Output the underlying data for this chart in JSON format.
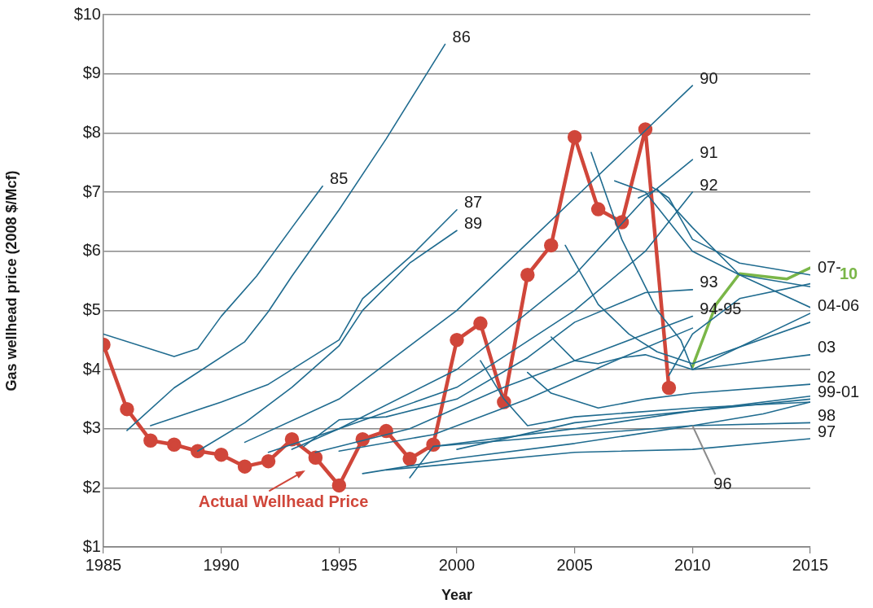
{
  "chart_data": {
    "type": "line",
    "xlabel": "Year",
    "ylabel": "Gas wellhead price (2008 $/Mcf)",
    "xlim": [
      1985,
      2015
    ],
    "xticks": [
      1985,
      1990,
      1995,
      2000,
      2005,
      2010,
      2015
    ],
    "ylim": [
      1,
      10
    ],
    "yticks": [
      {
        "value": 1,
        "label": "$1"
      },
      {
        "value": 2,
        "label": "$2"
      },
      {
        "value": 3,
        "label": "$3"
      },
      {
        "value": 4,
        "label": "$4"
      },
      {
        "value": 5,
        "label": "$5"
      },
      {
        "value": 6,
        "label": "$6"
      },
      {
        "value": 7,
        "label": "$7"
      },
      {
        "value": 8,
        "label": "$8"
      },
      {
        "value": 9,
        "label": "$9"
      },
      {
        "value": 10,
        "label": "$10"
      }
    ],
    "grid": "y",
    "line_style": "solid",
    "series": [
      {
        "color": "#1f6b8f",
        "x": [
          1985,
          1988,
          1989,
          1990,
          1991.5,
          1993,
          1994.3
        ],
        "values": [
          4.6,
          4.22,
          4.35,
          4.9,
          5.58,
          6.4,
          7.1
        ]
      },
      {
        "color": "#1f6b8f",
        "x": [
          1986,
          1988,
          1991,
          1992,
          1993,
          1995,
          1997,
          1999.5
        ],
        "values": [
          2.97,
          3.69,
          4.47,
          4.98,
          5.58,
          6.7,
          7.9,
          9.5
        ]
      },
      {
        "color": "#1f6b8f",
        "x": [
          1987,
          1990,
          1992,
          1995,
          1996,
          1998,
          2000
        ],
        "values": [
          3.05,
          3.45,
          3.75,
          4.5,
          5.2,
          5.9,
          6.7
        ]
      },
      {
        "color": "#1f6b8f",
        "x": [
          1989,
          1991,
          1993,
          1995,
          1996,
          1998,
          2000
        ],
        "values": [
          2.62,
          3.1,
          3.7,
          4.4,
          5.0,
          5.8,
          6.35
        ]
      },
      {
        "color": "#1f6b8f",
        "x": [
          1991,
          1995,
          2000,
          2005,
          2010
        ],
        "values": [
          2.77,
          3.5,
          5.0,
          6.9,
          8.8
        ]
      },
      {
        "color": "#1f6b8f",
        "x": [
          1992,
          1995,
          2000,
          2005,
          2008,
          2010
        ],
        "values": [
          2.6,
          3.0,
          4.0,
          5.6,
          6.9,
          7.55
        ]
      },
      {
        "color": "#1f6b8f",
        "x": [
          1993,
          1995,
          2000,
          2005,
          2008,
          2010
        ],
        "values": [
          2.65,
          3.0,
          3.7,
          5.0,
          6.0,
          7.0
        ]
      },
      {
        "color": "#1f6b8f",
        "x": [
          1993.5,
          1995,
          1997,
          2000,
          2003,
          2005,
          2008,
          2010
        ],
        "values": [
          2.7,
          3.15,
          3.2,
          3.5,
          4.2,
          4.8,
          5.3,
          5.35
        ]
      },
      {
        "color": "#1f6b8f",
        "x": [
          1994,
          1998,
          2002,
          2006,
          2010
        ],
        "values": [
          2.6,
          3.0,
          3.7,
          4.3,
          4.9
        ]
      },
      {
        "color": "#1f6b8f",
        "x": [
          1995,
          1999,
          2003,
          2007,
          2010
        ],
        "values": [
          2.62,
          2.9,
          3.5,
          4.2,
          4.7
        ]
      },
      {
        "color": "#1f6b8f",
        "x": [
          1996,
          2000,
          2005,
          2010,
          2013,
          2015
        ],
        "values": [
          2.24,
          2.5,
          2.75,
          3.05,
          3.25,
          3.45
        ]
      },
      {
        "color": "#1f6b8f",
        "x": [
          1997,
          2005,
          2010,
          2015
        ],
        "values": [
          2.3,
          2.6,
          2.65,
          2.83
        ]
      },
      {
        "color": "#1f6b8f",
        "x": [
          1998,
          1999,
          2005,
          2010,
          2015
        ],
        "values": [
          2.17,
          2.7,
          2.9,
          3.05,
          3.1
        ]
      },
      {
        "color": "#1f6b8f",
        "x": [
          1999,
          2005,
          2010,
          2015
        ],
        "values": [
          2.7,
          3.0,
          3.3,
          3.55
        ]
      },
      {
        "color": "#1f6b8f",
        "x": [
          2000,
          2005,
          2010,
          2015
        ],
        "values": [
          2.65,
          3.1,
          3.3,
          3.5
        ]
      },
      {
        "color": "#1f6b8f",
        "x": [
          2001,
          2002,
          2003,
          2005,
          2010,
          2015
        ],
        "values": [
          4.15,
          3.5,
          3.05,
          3.2,
          3.35,
          3.45
        ]
      },
      {
        "color": "#1f6b8f",
        "x": [
          2003,
          2004,
          2006,
          2008,
          2010,
          2015
        ],
        "values": [
          3.95,
          3.6,
          3.35,
          3.5,
          3.6,
          3.75
        ]
      },
      {
        "color": "#1f6b8f",
        "x": [
          2004,
          2005,
          2006,
          2007,
          2008,
          2010,
          2012,
          2015
        ],
        "values": [
          4.55,
          4.15,
          4.1,
          4.2,
          4.25,
          4.0,
          4.1,
          4.25
        ]
      },
      {
        "color": "#1f6b8f",
        "x": [
          2004.6,
          2006,
          2007.3,
          2008.5,
          2010,
          2015
        ],
        "values": [
          6.1,
          5.1,
          4.6,
          4.3,
          4.1,
          4.8
        ]
      },
      {
        "color": "#1f6b8f",
        "x": [
          2005.7,
          2007,
          2008.5,
          2009.5,
          2010,
          2015
        ],
        "values": [
          7.67,
          6.2,
          5.0,
          4.5,
          4.0,
          4.95
        ]
      },
      {
        "color": "#1f6b8f",
        "x": [
          2006.7,
          2008,
          2010,
          2012,
          2015
        ],
        "values": [
          7.19,
          7.0,
          6.0,
          5.6,
          5.05
        ]
      },
      {
        "color": "#1f6b8f",
        "x": [
          2008.3,
          2009,
          2010,
          2012,
          2015
        ],
        "values": [
          7.08,
          6.9,
          6.2,
          5.8,
          5.6
        ]
      },
      {
        "color": "#1f6b8f",
        "x": [
          2007.7,
          2008.5,
          2010,
          2012,
          2015
        ],
        "values": [
          6.9,
          7.05,
          6.4,
          5.6,
          5.4
        ]
      },
      {
        "color": "#1f6b8f",
        "x": [
          2009,
          2010,
          2012,
          2015
        ],
        "values": [
          3.9,
          4.6,
          5.2,
          5.45
        ]
      },
      {
        "name": "10",
        "color": "#7ab648",
        "x": [
          2010,
          2011,
          2012,
          2014,
          2015
        ],
        "values": [
          4.05,
          5.1,
          5.62,
          5.53,
          5.72
        ]
      },
      {
        "name": "Actual Wellhead Price",
        "color": "#d0463a",
        "marker": "circle",
        "x": [
          1985,
          1986,
          1987,
          1988,
          1989,
          1990,
          1991,
          1992,
          1993,
          1994,
          1995,
          1996,
          1997,
          1998,
          1999,
          2000,
          2001,
          2002,
          2003,
          2004,
          2005,
          2006,
          2007,
          2008,
          2009
        ],
        "values": [
          4.42,
          3.33,
          2.8,
          2.73,
          2.62,
          2.56,
          2.36,
          2.45,
          2.82,
          2.51,
          2.04,
          2.82,
          2.96,
          2.49,
          2.73,
          4.5,
          4.78,
          3.45,
          5.6,
          6.1,
          7.93,
          6.71,
          6.49,
          8.06,
          3.69
        ]
      }
    ],
    "annotations": [
      {
        "text": "85",
        "x": 1994.3,
        "y": 7.1
      },
      {
        "text": "86",
        "x": 1999.5,
        "y": 9.5
      },
      {
        "text": "87",
        "x": 2000,
        "y": 6.7
      },
      {
        "text": "89",
        "x": 2000,
        "y": 6.35
      },
      {
        "text": "90",
        "x": 2010,
        "y": 8.8
      },
      {
        "text": "91",
        "x": 2010,
        "y": 7.55
      },
      {
        "text": "92",
        "x": 2010,
        "y": 7.0
      },
      {
        "text": "93",
        "x": 2010,
        "y": 5.35
      },
      {
        "text": "94-95",
        "x": 2010,
        "y": 4.9
      },
      {
        "text": "07-",
        "x": 2015,
        "y": 5.6
      },
      {
        "text": "04-06",
        "x": 2015,
        "y": 4.95
      },
      {
        "text": "03",
        "x": 2015,
        "y": 4.25
      },
      {
        "text": "02",
        "x": 2015,
        "y": 3.75
      },
      {
        "text": "99-01",
        "x": 2015,
        "y": 3.5
      },
      {
        "text": "98",
        "x": 2015,
        "y": 3.1
      },
      {
        "text": "97",
        "x": 2015,
        "y": 2.83
      },
      {
        "text": "96",
        "x": 2010,
        "y": 3.05
      }
    ]
  }
}
